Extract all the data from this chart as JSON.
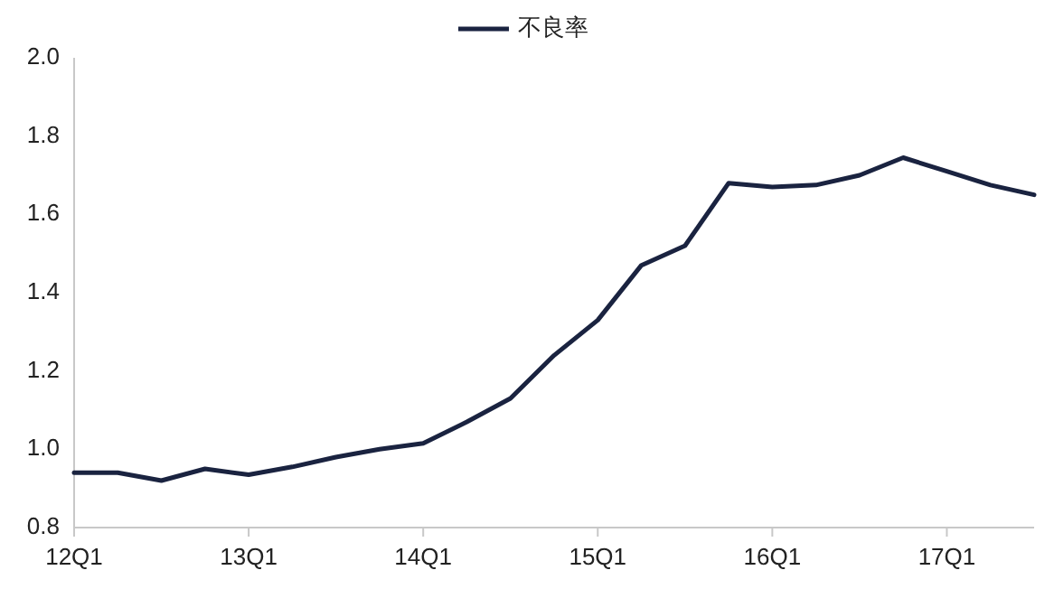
{
  "chart_data": {
    "type": "line",
    "categories": [
      "12Q1",
      null,
      null,
      null,
      "13Q1",
      null,
      null,
      null,
      "14Q1",
      null,
      null,
      null,
      "15Q1",
      null,
      null,
      null,
      "16Q1",
      null,
      null,
      null,
      "17Q1",
      null,
      null
    ],
    "series": [
      {
        "name": "不良率",
        "color": "#1a2340",
        "values": [
          0.94,
          0.94,
          0.92,
          0.95,
          0.935,
          0.955,
          0.98,
          1.0,
          1.015,
          1.07,
          1.13,
          1.24,
          1.33,
          1.47,
          1.52,
          1.68,
          1.67,
          1.675,
          1.7,
          1.745,
          1.71,
          1.675,
          1.65
        ]
      }
    ],
    "ylim": [
      0.8,
      2.0
    ],
    "yticks": [
      0.8,
      {
        "value": 1.0,
        "label": "1.0"
      },
      1.2,
      1.4,
      1.6,
      1.8,
      {
        "value": 2.0,
        "label": "2.0"
      }
    ],
    "legend": "top",
    "marker": "none",
    "line_style": "solid"
  }
}
